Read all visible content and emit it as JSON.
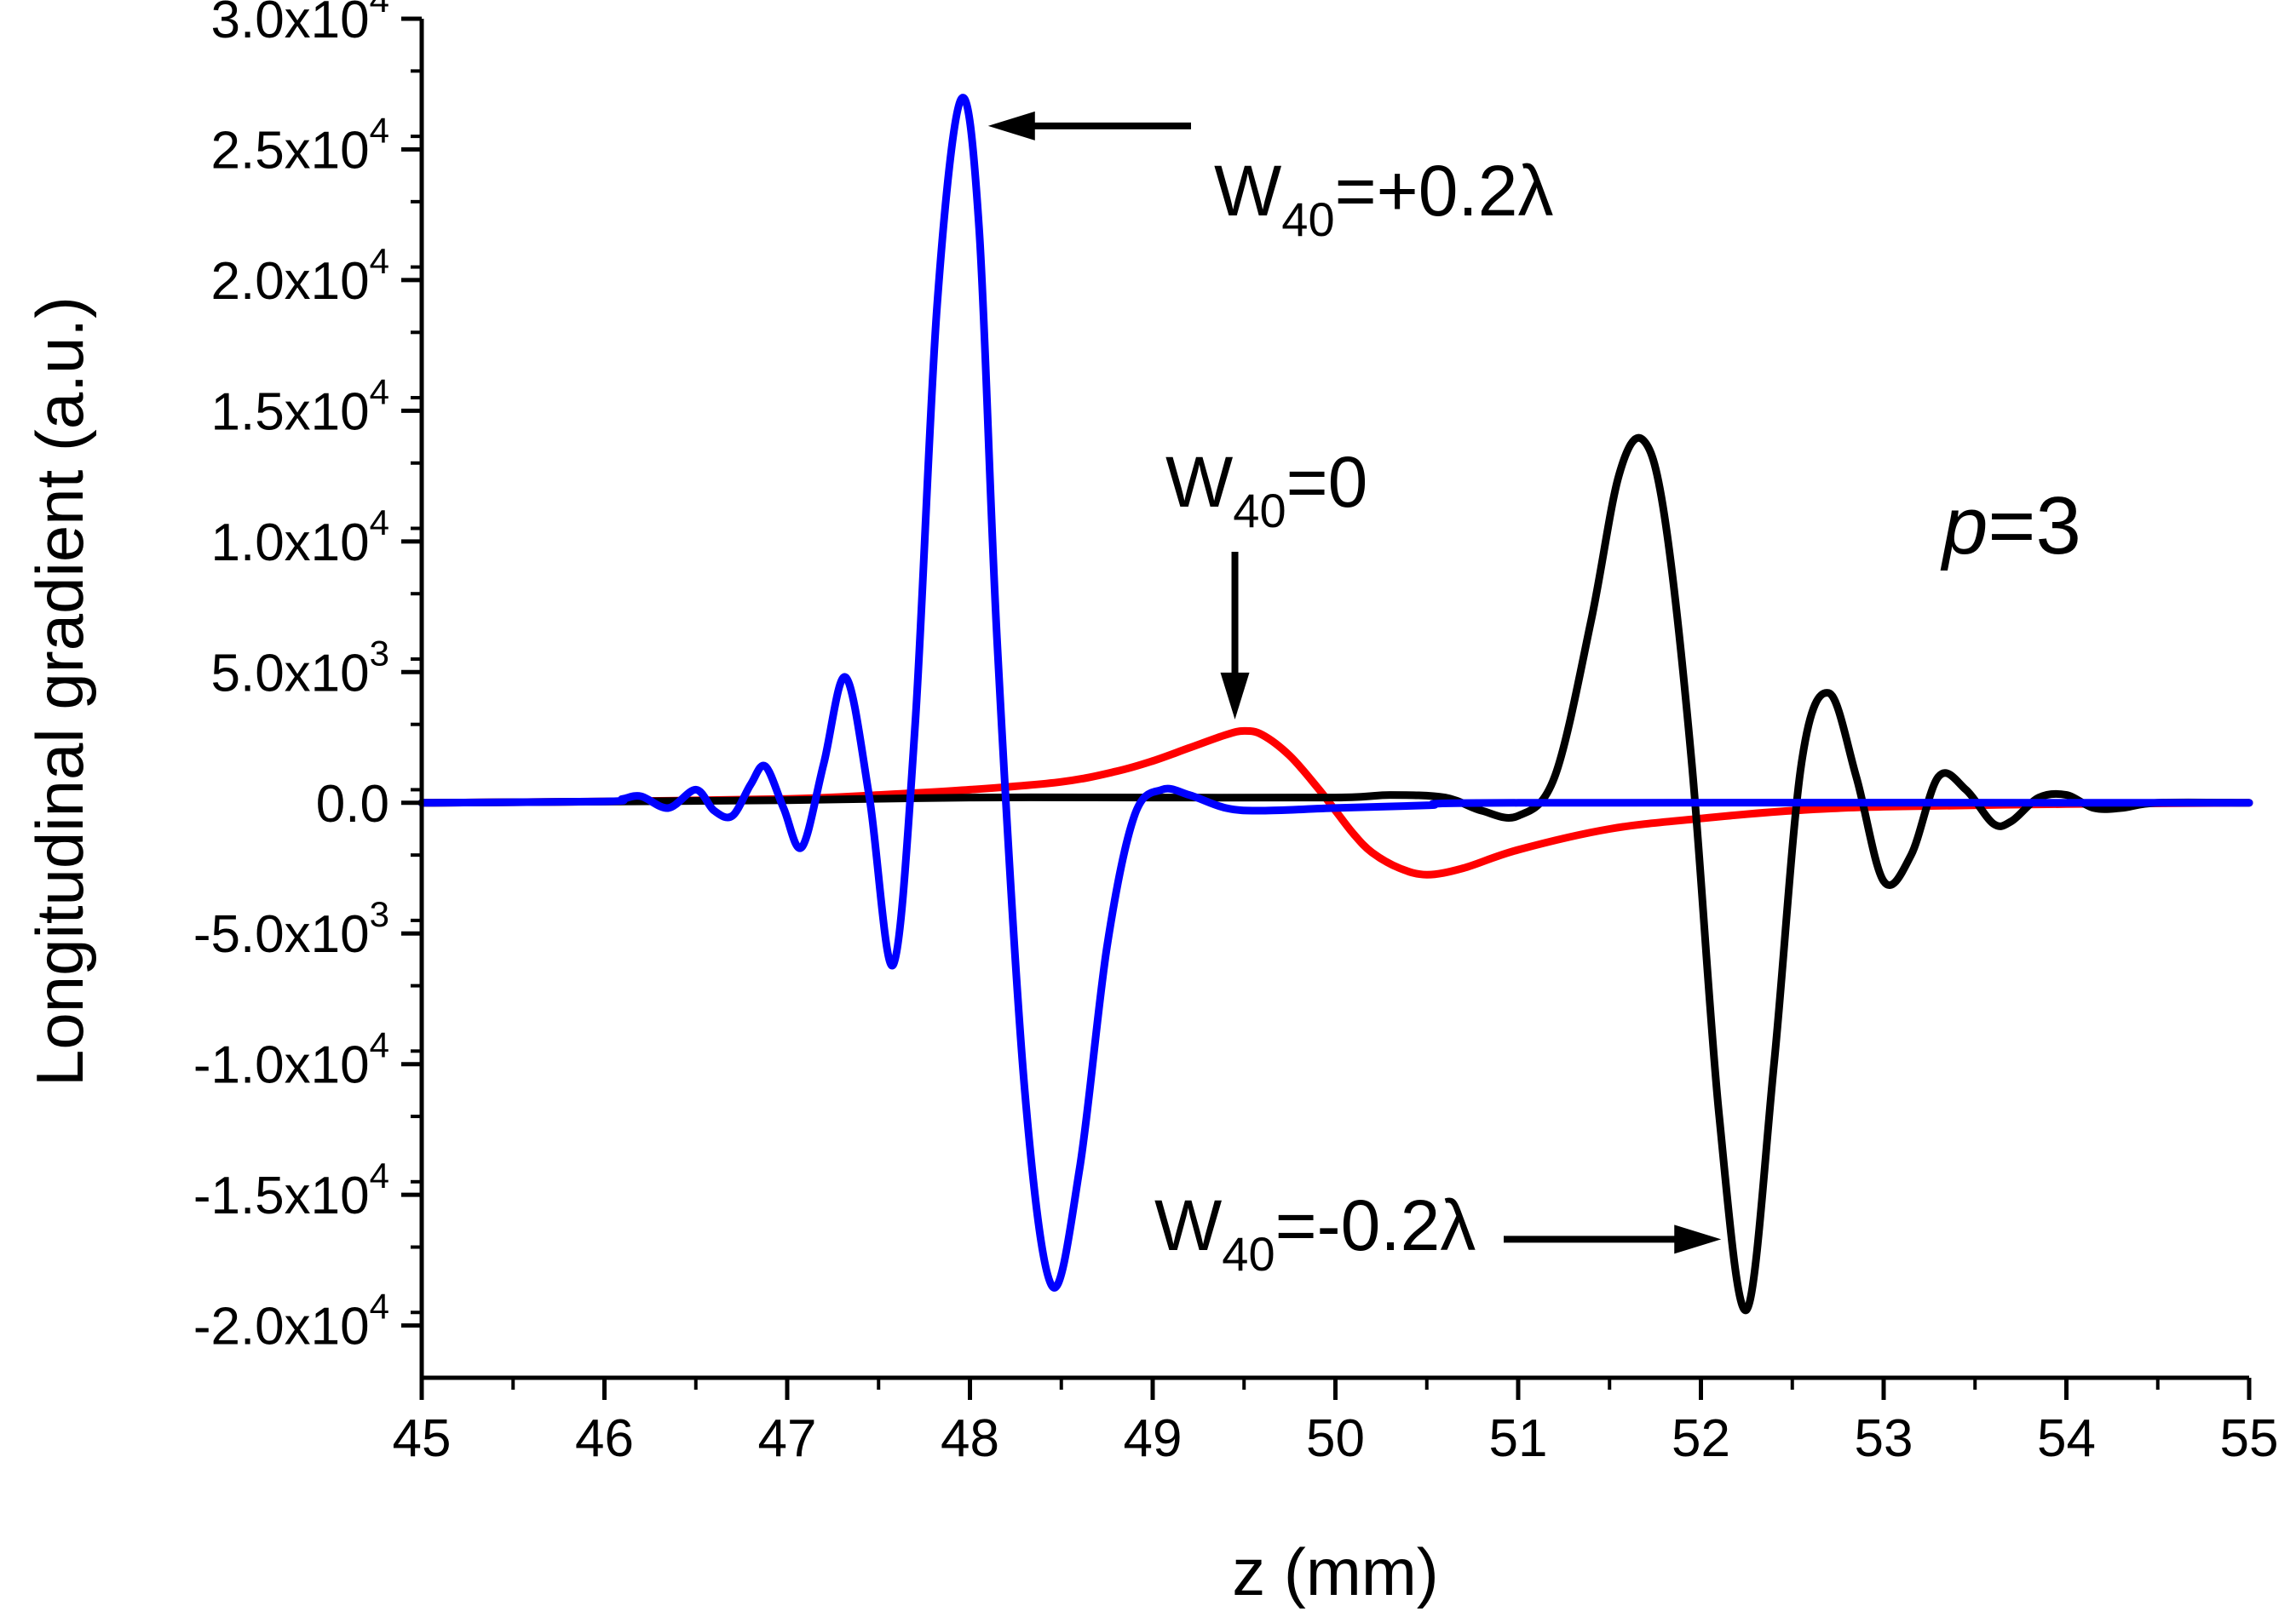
{
  "chart_data": {
    "type": "line",
    "xlabel": "z (mm)",
    "ylabel": "Longitudinal gradient (a.u.)",
    "xlim": [
      45,
      55
    ],
    "ylim": [
      -22000,
      30000
    ],
    "x_ticks": [
      45,
      46,
      47,
      48,
      49,
      50,
      51,
      52,
      53,
      54,
      55
    ],
    "x_tick_labels": [
      "45",
      "46",
      "47",
      "48",
      "49",
      "50",
      "51",
      "52",
      "53",
      "54",
      "55"
    ],
    "y_ticks": [
      30000,
      25000,
      20000,
      15000,
      10000,
      5000,
      0,
      -5000,
      -10000,
      -15000,
      -20000
    ],
    "y_tick_labels": [
      {
        "mant": "3.0x10",
        "exp": "4"
      },
      {
        "mant": "2.5x10",
        "exp": "4"
      },
      {
        "mant": "2.0x10",
        "exp": "4"
      },
      {
        "mant": "1.5x10",
        "exp": "4"
      },
      {
        "mant": "1.0x10",
        "exp": "4"
      },
      {
        "mant": "5.0x10",
        "exp": "3"
      },
      {
        "mant": "0.0",
        "exp": ""
      },
      {
        "mant": "-5.0x10",
        "exp": "3"
      },
      {
        "mant": "-1.0x10",
        "exp": "4"
      },
      {
        "mant": "-1.5x10",
        "exp": "4"
      },
      {
        "mant": "-2.0x10",
        "exp": "4"
      }
    ],
    "grid": false,
    "legend": "none",
    "series": [
      {
        "color": "#ff0000",
        "x": [
          45,
          46,
          47,
          47.5,
          48,
          48.5,
          48.8,
          49.0,
          49.2,
          49.4,
          49.5,
          49.6,
          49.75,
          49.9,
          50.0,
          50.1,
          50.2,
          50.35,
          50.5,
          50.7,
          51.0,
          51.5,
          52.0,
          52.5,
          53.0,
          54.0,
          55.0
        ],
        "y": [
          0,
          50,
          150,
          300,
          500,
          800,
          1200,
          1600,
          2100,
          2600,
          2750,
          2600,
          1800,
          600,
          -300,
          -1200,
          -1900,
          -2500,
          -2750,
          -2500,
          -1800,
          -1000,
          -600,
          -300,
          -150,
          -50,
          0
        ]
      },
      {
        "color": "#000000",
        "x": [
          45,
          47,
          48,
          49,
          50,
          50.3,
          50.6,
          50.8,
          51.0,
          51.2,
          51.4,
          51.55,
          51.68,
          51.8,
          51.95,
          52.1,
          52.25,
          52.4,
          52.55,
          52.7,
          52.85,
          53.0,
          53.15,
          53.3,
          53.45,
          53.6,
          53.7,
          53.85,
          54.0,
          54.15,
          54.3,
          54.5,
          55.0
        ],
        "y": [
          0,
          100,
          200,
          200,
          200,
          300,
          200,
          -300,
          -500,
          1000,
          7000,
          12500,
          13900,
          11000,
          1500,
          -12000,
          -19400,
          -10000,
          1500,
          4200,
          1000,
          -3000,
          -2000,
          1000,
          500,
          -800,
          -700,
          200,
          300,
          -200,
          -200,
          0,
          0
        ]
      },
      {
        "color": "#0000ff",
        "x": [
          45,
          46,
          46.1,
          46.2,
          46.35,
          46.5,
          46.6,
          46.7,
          46.8,
          46.88,
          46.98,
          47.08,
          47.2,
          47.32,
          47.45,
          47.58,
          47.7,
          47.82,
          47.95,
          48.05,
          48.15,
          48.3,
          48.45,
          48.6,
          48.75,
          48.9,
          49.05,
          49.2,
          49.4,
          49.6,
          50.0,
          50.5,
          51.0,
          55.0
        ],
        "y": [
          0,
          50,
          150,
          250,
          -200,
          500,
          -300,
          -500,
          700,
          1400,
          -200,
          -1700,
          1500,
          4800,
          200,
          -6200,
          3000,
          19000,
          26900,
          22000,
          6000,
          -11000,
          -18500,
          -14000,
          -5500,
          -500,
          500,
          300,
          -200,
          -300,
          -200,
          -100,
          0,
          0
        ]
      }
    ],
    "annotations": [
      {
        "id": "plus",
        "text_main": "W",
        "text_sub": "40",
        "text_rest": "=+0.2λ",
        "points_to": {
          "x": 47.95,
          "y": 25900
        }
      },
      {
        "id": "zero",
        "text_main": "W",
        "text_sub": "40",
        "text_rest": "=0",
        "points_to": {
          "x": 49.45,
          "y": 2800
        }
      },
      {
        "id": "minus",
        "text_main": "W",
        "text_sub": "40",
        "text_rest": "=-0.2λ",
        "points_to": {
          "x": 52.12,
          "y": -16700
        }
      },
      {
        "id": "p",
        "text_main": "p",
        "text_rest": "=3"
      }
    ],
    "colors": {
      "axis": "#000000",
      "arrow": "#000000"
    }
  }
}
